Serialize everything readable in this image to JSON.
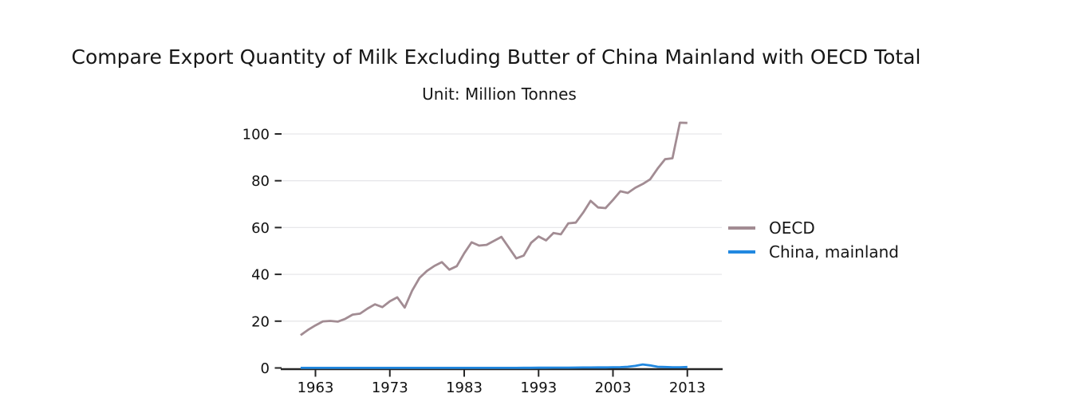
{
  "chart_data": {
    "type": "line",
    "title": "Compare Export Quantity of Milk Excluding Butter of China Mainland with OECD Total",
    "subtitle": "Unit: Million Tonnes",
    "unit": "Million Tonnes",
    "grid": "horizontal-only",
    "legend_position": "right-of-plot",
    "x_tick_labels": [
      1963,
      1973,
      1983,
      1993,
      2003,
      2013
    ],
    "y_tick_labels": [
      0,
      20,
      40,
      60,
      80,
      100
    ],
    "xlim": [
      1958.4,
      2017.6
    ],
    "ylim": [
      0,
      108
    ],
    "colors": {
      "oecd_line": "#a28c93",
      "china_line": "#2188e0",
      "axis": "#262626",
      "gridline": "#e7e7ea",
      "text": "#171717"
    },
    "years": [
      1961,
      1962,
      1963,
      1964,
      1965,
      1966,
      1967,
      1968,
      1969,
      1970,
      1971,
      1972,
      1973,
      1974,
      1975,
      1976,
      1977,
      1978,
      1979,
      1980,
      1981,
      1982,
      1983,
      1984,
      1985,
      1986,
      1987,
      1988,
      1989,
      1990,
      1991,
      1992,
      1993,
      1994,
      1995,
      1996,
      1997,
      1998,
      1999,
      2000,
      2001,
      2002,
      2003,
      2004,
      2005,
      2006,
      2007,
      2008,
      2009,
      2010,
      2011,
      2012,
      2013
    ],
    "series": [
      {
        "name": "OECD",
        "color": "#a28c93",
        "values": [
          14.0,
          16.3,
          18.2,
          19.9,
          20.1,
          19.8,
          21.0,
          22.8,
          23.2,
          25.4,
          27.2,
          26.0,
          28.5,
          30.2,
          25.8,
          33.0,
          38.5,
          41.5,
          43.6,
          45.2,
          42.0,
          43.5,
          49.0,
          53.7,
          52.3,
          52.6,
          54.3,
          56.0,
          51.4,
          46.8,
          48.0,
          53.5,
          56.2,
          54.5,
          57.7,
          57.1,
          61.8,
          62.1,
          66.4,
          71.4,
          68.6,
          68.3,
          71.8,
          75.5,
          74.8,
          77.0,
          78.6,
          80.6,
          85.2,
          89.2,
          89.6,
          104.8,
          104.7
        ]
      },
      {
        "name": "China, mainland",
        "color": "#2188e0",
        "values": [
          0.05,
          0.05,
          0.05,
          0.05,
          0.05,
          0.05,
          0.05,
          0.05,
          0.05,
          0.05,
          0.05,
          0.05,
          0.05,
          0.05,
          0.05,
          0.05,
          0.05,
          0.05,
          0.05,
          0.05,
          0.05,
          0.05,
          0.05,
          0.05,
          0.05,
          0.05,
          0.05,
          0.05,
          0.05,
          0.05,
          0.08,
          0.08,
          0.1,
          0.1,
          0.12,
          0.15,
          0.15,
          0.18,
          0.2,
          0.22,
          0.25,
          0.25,
          0.3,
          0.35,
          0.5,
          0.9,
          1.5,
          1.1,
          0.5,
          0.4,
          0.3,
          0.3,
          0.4
        ]
      }
    ]
  }
}
